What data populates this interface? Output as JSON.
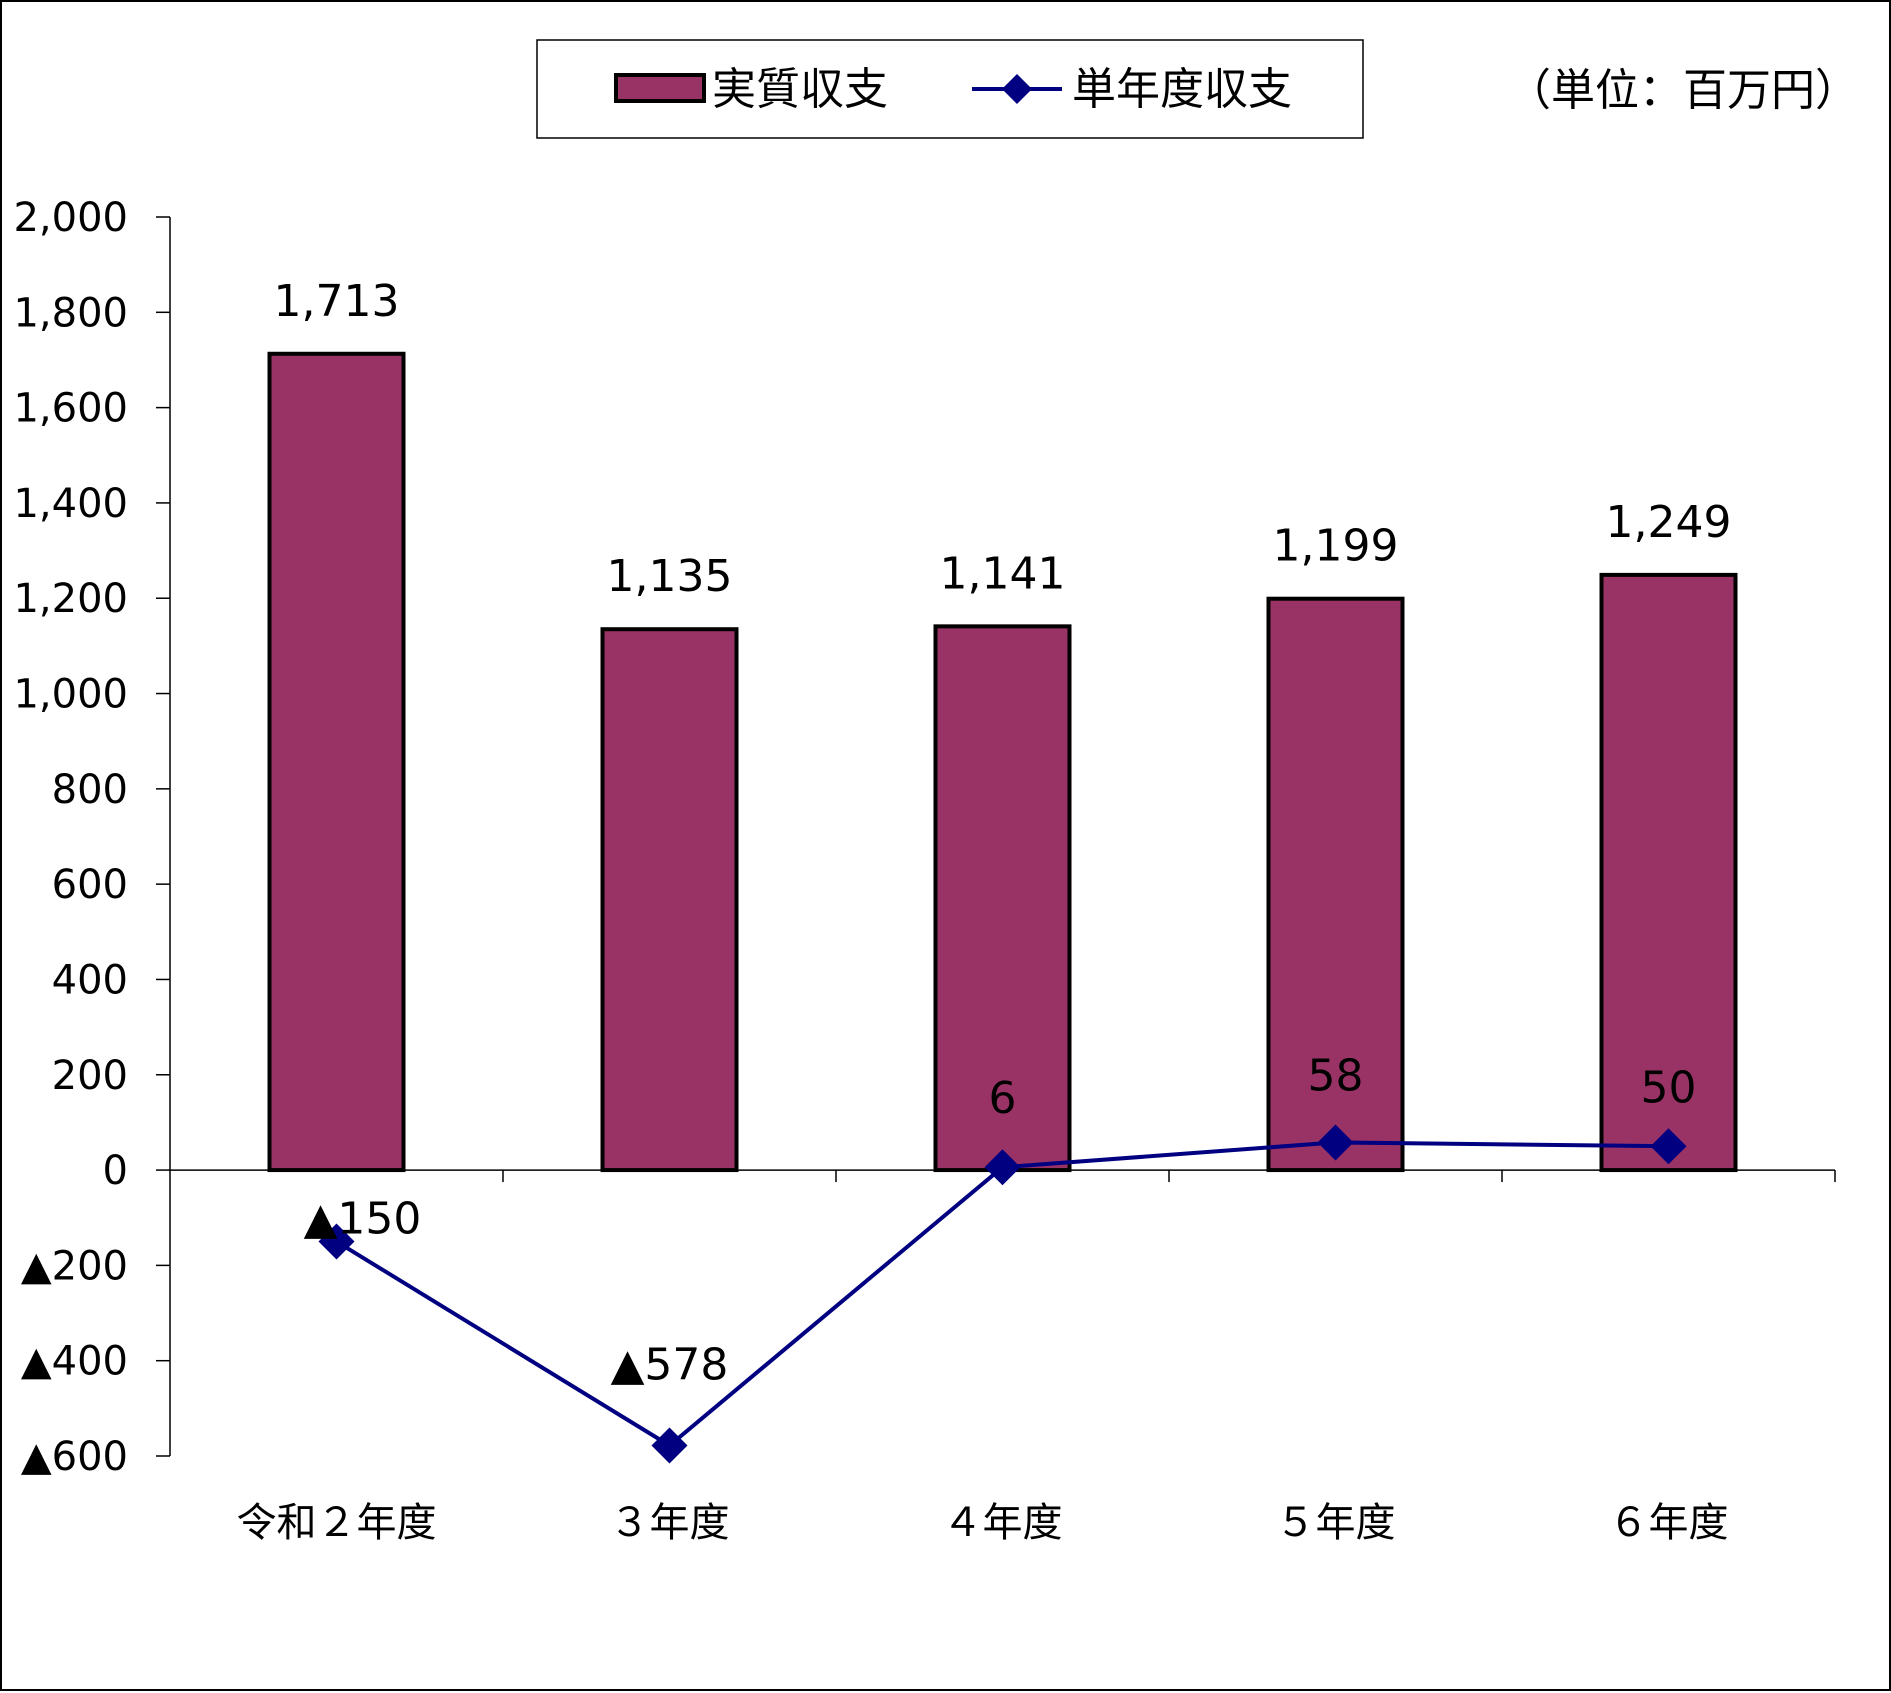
{
  "chart_data": {
    "type": "bar",
    "unit_note": "（単位：百万円）",
    "categories": [
      "令和２年度",
      "３年度",
      "４年度",
      "５年度",
      "６年度"
    ],
    "ylim": [
      -600,
      2000
    ],
    "y_ticks": [
      2000,
      1800,
      1600,
      1400,
      1200,
      1000,
      800,
      600,
      400,
      200,
      0,
      -200,
      -400,
      -600
    ],
    "y_tick_labels": [
      "2,000",
      "1,800",
      "1,600",
      "1,400",
      "1,200",
      "1,000",
      "800",
      "600",
      "400",
      "200",
      "0",
      "▲200",
      "▲400",
      "▲600"
    ],
    "grid": false,
    "legend_position": "top",
    "series": [
      {
        "name": "実質収支",
        "type": "bar",
        "color": "#993366",
        "values": [
          1713,
          1135,
          1141,
          1199,
          1249
        ],
        "labels": [
          "1,713",
          "1,135",
          "1,141",
          "1,199",
          "1,249"
        ]
      },
      {
        "name": "単年度収支",
        "type": "line",
        "marker": "diamond",
        "color": "#000080",
        "values": [
          -150,
          -578,
          6,
          58,
          50
        ],
        "labels": [
          "▲150",
          "▲578",
          "6",
          "58",
          "50"
        ]
      }
    ]
  }
}
